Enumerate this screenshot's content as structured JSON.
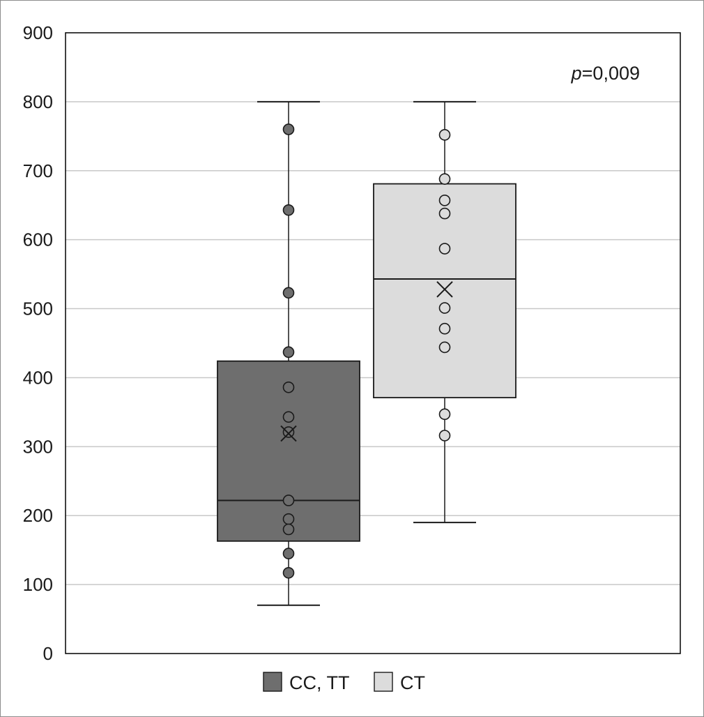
{
  "chart_data": {
    "type": "box",
    "title": "",
    "xlabel": "",
    "ylabel": "",
    "ylim": [
      0,
      900
    ],
    "yticks": [
      "0",
      "100",
      "200",
      "300",
      "400",
      "500",
      "600",
      "700",
      "800",
      "900"
    ],
    "grid": true,
    "legend_placement": "bottom-center",
    "annotation": {
      "italic": "p",
      "text": "=0,009"
    },
    "series": [
      {
        "name": "CC, TT",
        "color": "#6e6e6e",
        "whisker_low": 70,
        "q1": 163,
        "median": 222,
        "q3": 424,
        "whisker_high": 800,
        "mean": 319,
        "points": [
          760,
          643,
          523,
          437,
          386,
          343,
          321,
          222,
          195,
          180,
          145,
          117
        ],
        "point_fills": [
          "#6e6e6e",
          "#6e6e6e",
          "#6e6e6e",
          "#6e6e6e",
          "#6e6e6e",
          "#6e6e6e",
          "#6e6e6e",
          "#6e6e6e",
          "#6e6e6e",
          "#6e6e6e",
          "#6e6e6e",
          "#6e6e6e"
        ]
      },
      {
        "name": "CT",
        "color": "#dcdcdc",
        "whisker_low": 190,
        "q1": 371,
        "median": 543,
        "q3": 681,
        "whisker_high": 800,
        "mean": 528,
        "points": [
          752,
          688,
          657,
          638,
          587,
          501,
          471,
          444,
          347,
          316
        ],
        "point_fills": [
          "#dcdcdc",
          "#dcdcdc",
          "#dcdcdc",
          "#dcdcdc",
          "#dcdcdc",
          "#dcdcdc",
          "#dcdcdc",
          "#dcdcdc",
          "#dcdcdc",
          "#dcdcdc"
        ]
      }
    ],
    "styles": {
      "axis_color": "#000000",
      "grid_color": "#c8c8c8",
      "line_color": "#1a1a1a"
    }
  }
}
